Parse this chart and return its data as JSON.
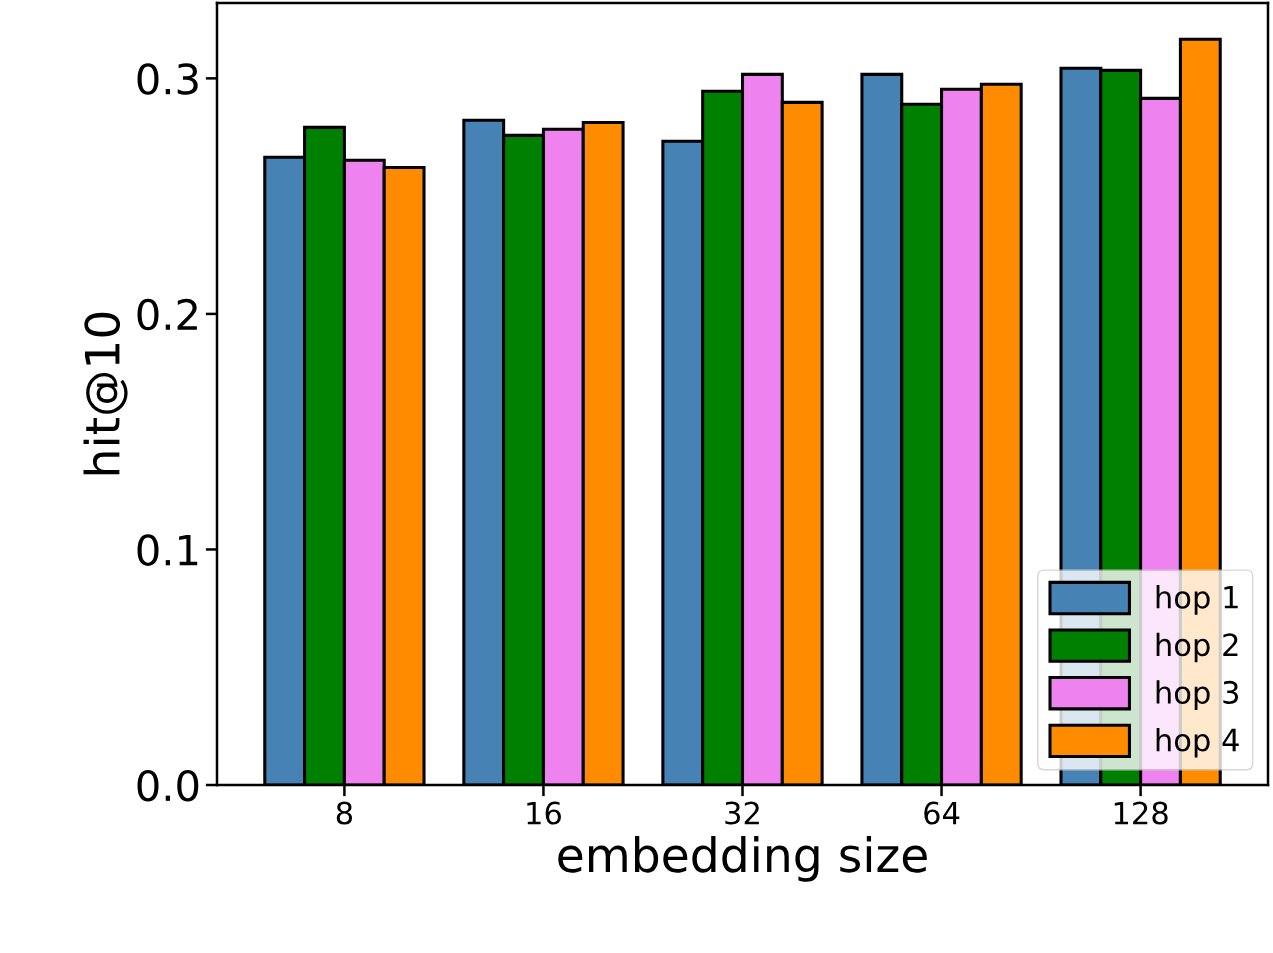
{
  "chart_data": {
    "type": "bar",
    "xlabel": "embedding size",
    "ylabel": "hit@10",
    "categories": [
      "8",
      "16",
      "32",
      "64",
      "128"
    ],
    "series": [
      {
        "name": "hop 1",
        "color": "#4682b4",
        "values": [
          0.2665,
          0.2822,
          0.2733,
          0.3017,
          0.3043
        ]
      },
      {
        "name": "hop 2",
        "color": "#008000",
        "values": [
          0.2792,
          0.2758,
          0.2945,
          0.289,
          0.3034
        ]
      },
      {
        "name": "hop 3",
        "color": "#ee82ee",
        "values": [
          0.2652,
          0.2784,
          0.3017,
          0.2954,
          0.2915
        ]
      },
      {
        "name": "hop 4",
        "color": "#ff8c00",
        "values": [
          0.2622,
          0.2813,
          0.2898,
          0.2975,
          0.3166
        ]
      }
    ],
    "ylim": [
      0,
      0.332
    ],
    "yticks": [
      {
        "value": 0,
        "label": "0.0"
      },
      0.1,
      0.2,
      0.3
    ],
    "grid": false,
    "legend": "lower right"
  }
}
